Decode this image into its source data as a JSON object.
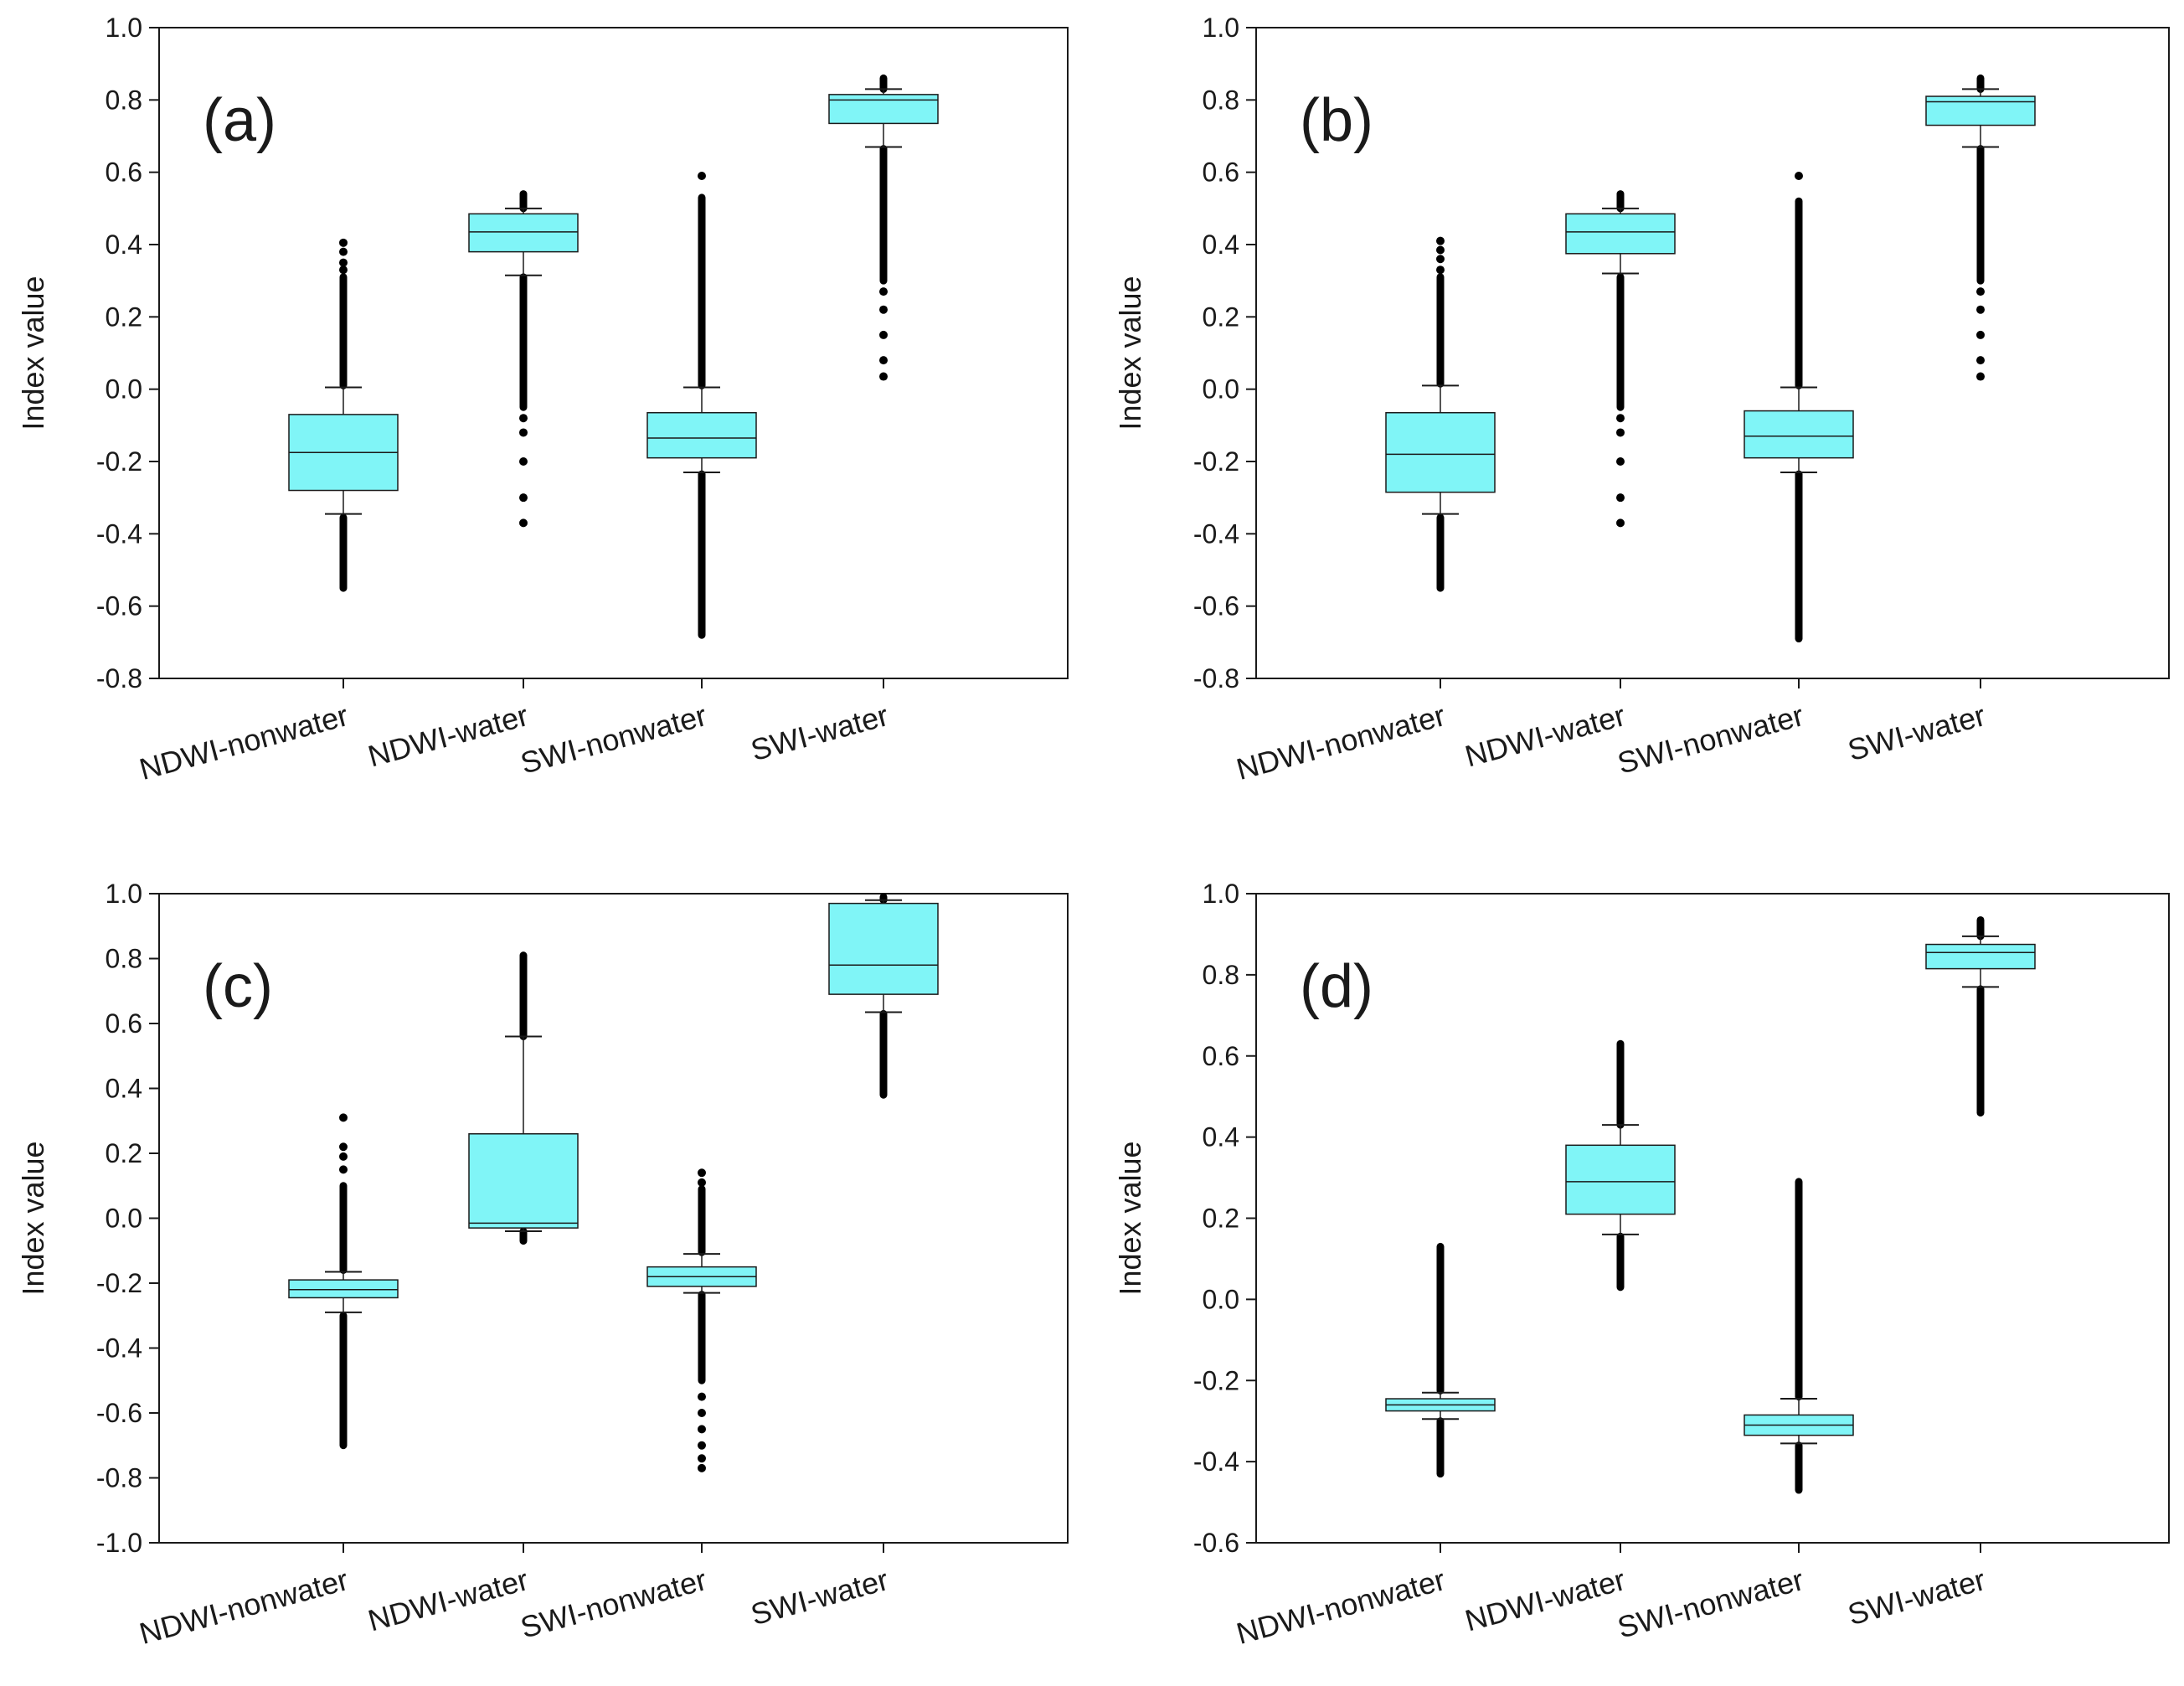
{
  "colors": {
    "box_fill": "#80f5f7",
    "box_stroke": "#1a1a1a",
    "axis": "#1a1a1a",
    "outlier": "#000000"
  },
  "chart_data": [
    {
      "type": "box",
      "panel_label": "(a)",
      "ylabel": "Index value",
      "ylim": [
        -0.8,
        1.0
      ],
      "yticks": [
        "-0.8",
        "-0.6",
        "-0.4",
        "-0.2",
        "0.0",
        "0.2",
        "0.4",
        "0.6",
        "0.8",
        "1.0"
      ],
      "categories": [
        "NDWI-nonwater",
        "NDWI-water",
        "SWI-nonwater",
        "SWI-water"
      ],
      "boxes": [
        {
          "q1": -0.28,
          "median": -0.175,
          "q3": -0.07,
          "whisker_low": -0.345,
          "whisker_high": 0.005,
          "outliers_low": [
            -0.55,
            -0.355
          ],
          "outliers_high": [
            0.01,
            0.31
          ],
          "sparse_high": [
            0.33,
            0.35,
            0.38,
            0.405
          ]
        },
        {
          "q1": 0.38,
          "median": 0.435,
          "q3": 0.485,
          "whisker_low": 0.315,
          "whisker_high": 0.5,
          "outliers_low": [
            -0.05,
            0.31
          ],
          "outliers_high": [
            0.5,
            0.54
          ],
          "sparse_low": [
            -0.37,
            -0.3,
            -0.2,
            -0.12,
            -0.08
          ]
        },
        {
          "q1": -0.19,
          "median": -0.135,
          "q3": -0.065,
          "whisker_low": -0.23,
          "whisker_high": 0.005,
          "outliers_low": [
            -0.68,
            -0.235
          ],
          "outliers_high": [
            0.01,
            0.53
          ],
          "sparse_high": [
            0.59
          ]
        },
        {
          "q1": 0.735,
          "median": 0.8,
          "q3": 0.815,
          "whisker_low": 0.67,
          "whisker_high": 0.83,
          "outliers_low": [
            0.3,
            0.665
          ],
          "outliers_high": [
            0.83,
            0.86
          ],
          "sparse_low": [
            0.035,
            0.08,
            0.15,
            0.22,
            0.27
          ]
        }
      ]
    },
    {
      "type": "box",
      "panel_label": "(b)",
      "ylabel": "Index value",
      "ylim": [
        -0.8,
        1.0
      ],
      "yticks": [
        "-0.8",
        "-0.6",
        "-0.4",
        "-0.2",
        "0.0",
        "0.2",
        "0.4",
        "0.6",
        "0.8",
        "1.0"
      ],
      "categories": [
        "NDWI-nonwater",
        "NDWI-water",
        "SWI-nonwater",
        "SWI-water"
      ],
      "boxes": [
        {
          "q1": -0.285,
          "median": -0.18,
          "q3": -0.065,
          "whisker_low": -0.345,
          "whisker_high": 0.01,
          "outliers_low": [
            -0.55,
            -0.355
          ],
          "outliers_high": [
            0.015,
            0.31
          ],
          "sparse_high": [
            0.33,
            0.36,
            0.385,
            0.41
          ]
        },
        {
          "q1": 0.375,
          "median": 0.435,
          "q3": 0.485,
          "whisker_low": 0.32,
          "whisker_high": 0.5,
          "outliers_low": [
            -0.05,
            0.31
          ],
          "outliers_high": [
            0.5,
            0.54
          ],
          "sparse_low": [
            -0.37,
            -0.3,
            -0.2,
            -0.12,
            -0.08
          ]
        },
        {
          "q1": -0.19,
          "median": -0.13,
          "q3": -0.06,
          "whisker_low": -0.23,
          "whisker_high": 0.005,
          "outliers_low": [
            -0.69,
            -0.235
          ],
          "outliers_high": [
            0.01,
            0.52
          ],
          "sparse_high": [
            0.59
          ]
        },
        {
          "q1": 0.73,
          "median": 0.795,
          "q3": 0.81,
          "whisker_low": 0.67,
          "whisker_high": 0.83,
          "outliers_low": [
            0.3,
            0.665
          ],
          "outliers_high": [
            0.83,
            0.86
          ],
          "sparse_low": [
            0.035,
            0.08,
            0.15,
            0.22,
            0.27
          ]
        }
      ]
    },
    {
      "type": "box",
      "panel_label": "(c)",
      "ylabel": "Index value",
      "ylim": [
        -1.0,
        1.0
      ],
      "yticks": [
        "-1.0",
        "-0.8",
        "-0.6",
        "-0.4",
        "-0.2",
        "0.0",
        "0.2",
        "0.4",
        "0.6",
        "0.8",
        "1.0"
      ],
      "categories": [
        "NDWI-nonwater",
        "NDWI-water",
        "SWI-nonwater",
        "SWI-water"
      ],
      "boxes": [
        {
          "q1": -0.245,
          "median": -0.22,
          "q3": -0.19,
          "whisker_low": -0.29,
          "whisker_high": -0.165,
          "outliers_low": [
            -0.7,
            -0.3
          ],
          "outliers_high": [
            -0.16,
            0.1
          ],
          "sparse_high": [
            0.15,
            0.19,
            0.22,
            0.31
          ]
        },
        {
          "q1": -0.03,
          "median": -0.015,
          "q3": 0.26,
          "whisker_low": -0.04,
          "whisker_high": 0.56,
          "outliers_low": [
            -0.07,
            -0.04
          ],
          "outliers_high": [
            0.56,
            0.81
          ],
          "sparse_low": []
        },
        {
          "q1": -0.21,
          "median": -0.18,
          "q3": -0.15,
          "whisker_low": -0.23,
          "whisker_high": -0.11,
          "outliers_low": [
            -0.5,
            -0.235
          ],
          "outliers_high": [
            -0.105,
            0.09
          ],
          "sparse_high": [
            0.11,
            0.14
          ],
          "sparse_low": [
            -0.55,
            -0.6,
            -0.65,
            -0.7,
            -0.74,
            -0.77
          ]
        },
        {
          "q1": 0.69,
          "median": 0.78,
          "q3": 0.97,
          "whisker_low": 0.635,
          "whisker_high": 0.98,
          "outliers_low": [
            0.38,
            0.63
          ],
          "outliers_high": [
            0.98,
            0.99
          ],
          "sparse_low": []
        }
      ]
    },
    {
      "type": "box",
      "panel_label": "(d)",
      "ylabel": "Index value",
      "ylim": [
        -0.6,
        1.0
      ],
      "yticks": [
        "-0.6",
        "-0.4",
        "-0.2",
        "0.0",
        "0.2",
        "0.4",
        "0.6",
        "0.8",
        "1.0"
      ],
      "categories": [
        "NDWI-nonwater",
        "NDWI-water",
        "SWI-nonwater",
        "SWI-water"
      ],
      "boxes": [
        {
          "q1": -0.275,
          "median": -0.26,
          "q3": -0.245,
          "whisker_low": -0.295,
          "whisker_high": -0.23,
          "outliers_low": [
            -0.43,
            -0.3
          ],
          "outliers_high": [
            -0.225,
            0.13
          ],
          "sparse_high": []
        },
        {
          "q1": 0.21,
          "median": 0.29,
          "q3": 0.38,
          "whisker_low": 0.16,
          "whisker_high": 0.43,
          "outliers_low": [
            0.03,
            0.155
          ],
          "outliers_high": [
            0.43,
            0.63
          ],
          "sparse_low": []
        },
        {
          "q1": -0.335,
          "median": -0.31,
          "q3": -0.285,
          "whisker_low": -0.355,
          "whisker_high": -0.245,
          "outliers_low": [
            -0.47,
            -0.36
          ],
          "outliers_high": [
            -0.24,
            0.29
          ],
          "sparse_high": []
        },
        {
          "q1": 0.815,
          "median": 0.855,
          "q3": 0.875,
          "whisker_low": 0.77,
          "whisker_high": 0.895,
          "outliers_low": [
            0.46,
            0.765
          ],
          "outliers_high": [
            0.895,
            0.935
          ],
          "sparse_low": []
        }
      ]
    }
  ]
}
